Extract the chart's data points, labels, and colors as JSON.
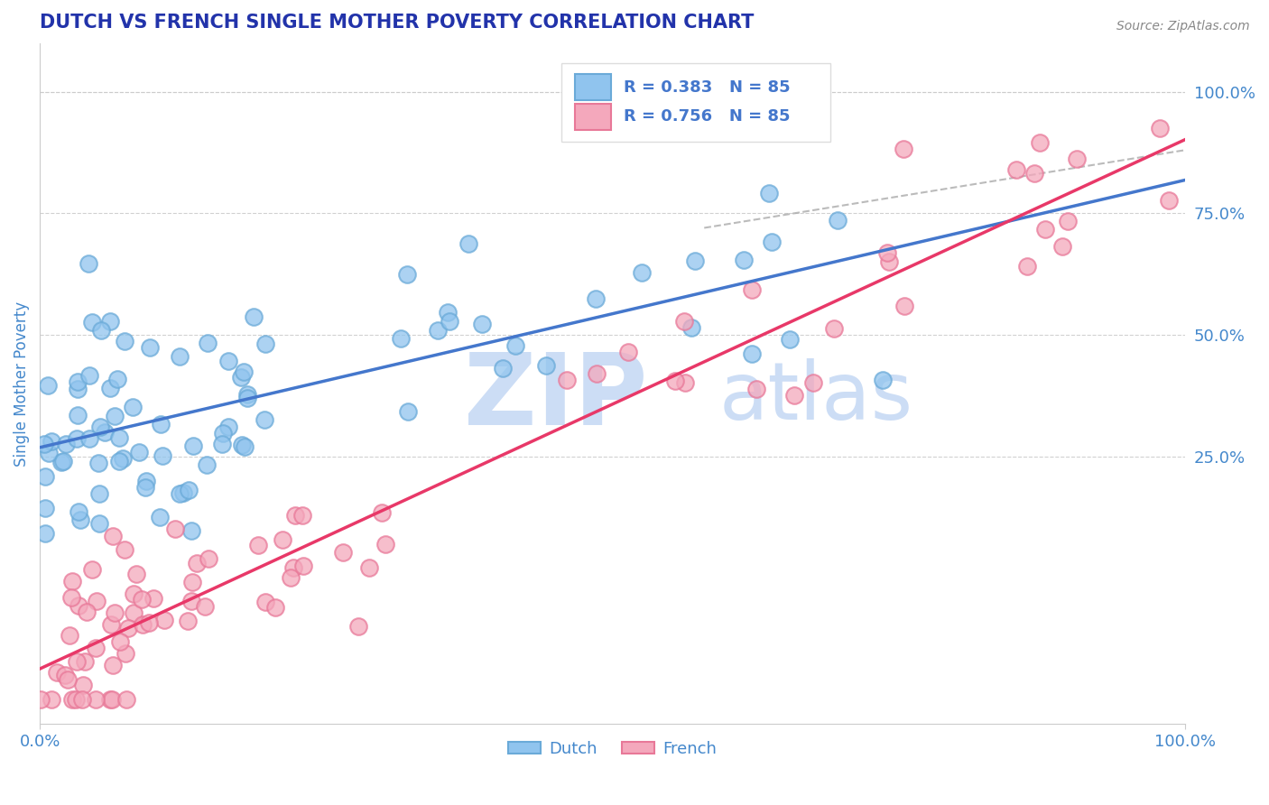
{
  "title": "DUTCH VS FRENCH SINGLE MOTHER POVERTY CORRELATION CHART",
  "source": "Source: ZipAtlas.com",
  "ylabel": "Single Mother Poverty",
  "xlim": [
    0.0,
    1.0
  ],
  "ylim": [
    -0.3,
    1.1
  ],
  "dutch_color": "#90C4EE",
  "french_color": "#F4A8BC",
  "dutch_edge_color": "#6AAAD8",
  "french_edge_color": "#E87898",
  "trend_dutch_color": "#4477CC",
  "trend_french_color": "#E83868",
  "dashed_line_color": "#AAAAAA",
  "background_color": "#FFFFFF",
  "grid_color": "#CCCCCC",
  "title_color": "#2233AA",
  "axis_label_color": "#4488CC",
  "legend_dutch_label": "Dutch",
  "legend_french_label": "French",
  "legend_r_dutch": "R = 0.383   N = 85",
  "legend_r_french": "R = 0.756   N = 85",
  "right_yticks": [
    0.25,
    0.5,
    0.75,
    1.0
  ],
  "right_ytick_labels": [
    "25.0%",
    "50.0%",
    "75.0%",
    "100.0%"
  ],
  "watermark_zip": "ZIP",
  "watermark_atlas": "atlas",
  "watermark_color_zip": "#CCDDF5",
  "watermark_color_atlas": "#CCDDF5",
  "marker_size": 180,
  "marker_lw": 1.5,
  "n": 85,
  "dutch_r": 0.383,
  "french_r": 0.756,
  "dutch_slope": 0.55,
  "dutch_intercept": 0.28,
  "french_slope": 1.1,
  "french_intercept": -0.2,
  "dutch_noise": 0.12,
  "french_noise": 0.09,
  "dutch_seed": 7,
  "french_seed": 13
}
